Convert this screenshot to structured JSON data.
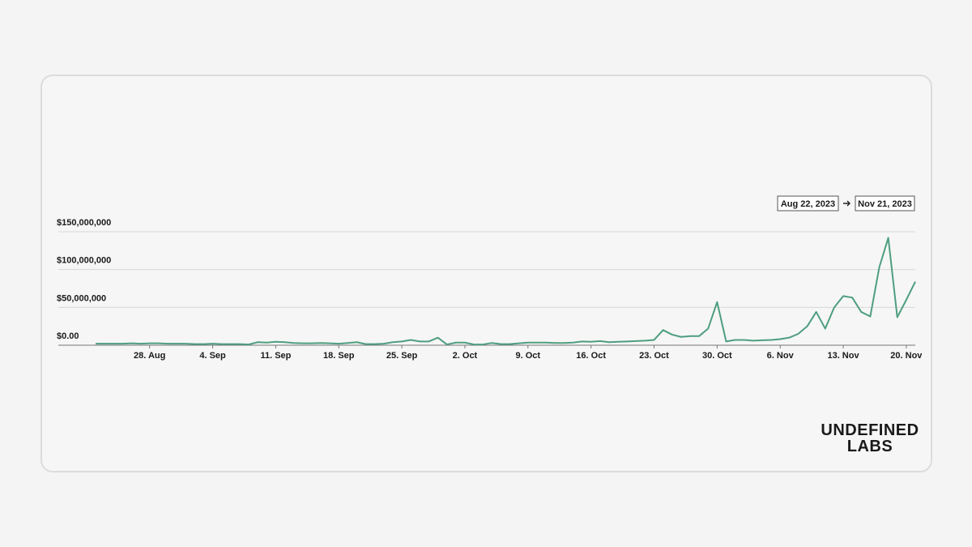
{
  "chart_data": {
    "type": "line",
    "date_range": {
      "start": "Aug 22, 2023",
      "end": "Nov 21, 2023"
    },
    "logo": [
      "UNDEFINED",
      "LABS"
    ],
    "color": "#4e9e7f",
    "x": [
      "2023-08-22",
      "2023-08-23",
      "2023-08-24",
      "2023-08-25",
      "2023-08-26",
      "2023-08-27",
      "2023-08-28",
      "2023-08-29",
      "2023-08-30",
      "2023-08-31",
      "2023-09-01",
      "2023-09-02",
      "2023-09-03",
      "2023-09-04",
      "2023-09-05",
      "2023-09-06",
      "2023-09-07",
      "2023-09-08",
      "2023-09-09",
      "2023-09-10",
      "2023-09-11",
      "2023-09-12",
      "2023-09-13",
      "2023-09-14",
      "2023-09-15",
      "2023-09-16",
      "2023-09-17",
      "2023-09-18",
      "2023-09-19",
      "2023-09-20",
      "2023-09-21",
      "2023-09-22",
      "2023-09-23",
      "2023-09-24",
      "2023-09-25",
      "2023-09-26",
      "2023-09-27",
      "2023-09-28",
      "2023-09-29",
      "2023-09-30",
      "2023-10-01",
      "2023-10-02",
      "2023-10-03",
      "2023-10-04",
      "2023-10-05",
      "2023-10-06",
      "2023-10-07",
      "2023-10-08",
      "2023-10-09",
      "2023-10-10",
      "2023-10-11",
      "2023-10-12",
      "2023-10-13",
      "2023-10-14",
      "2023-10-15",
      "2023-10-16",
      "2023-10-17",
      "2023-10-18",
      "2023-10-19",
      "2023-10-20",
      "2023-10-21",
      "2023-10-22",
      "2023-10-23",
      "2023-10-24",
      "2023-10-25",
      "2023-10-26",
      "2023-10-27",
      "2023-10-28",
      "2023-10-29",
      "2023-10-30",
      "2023-10-31",
      "2023-11-01",
      "2023-11-02",
      "2023-11-03",
      "2023-11-04",
      "2023-11-05",
      "2023-11-06",
      "2023-11-07",
      "2023-11-08",
      "2023-11-09",
      "2023-11-10",
      "2023-11-11",
      "2023-11-12",
      "2023-11-13",
      "2023-11-14",
      "2023-11-15",
      "2023-11-16",
      "2023-11-17",
      "2023-11-18",
      "2023-11-19",
      "2023-11-20",
      "2023-11-21"
    ],
    "values": [
      2000000,
      2000000,
      2000000,
      2000000,
      2500000,
      2000000,
      2500000,
      2500000,
      2000000,
      2000000,
      2000000,
      1500000,
      1500000,
      2000000,
      1500000,
      1500000,
      1500000,
      1000000,
      4000000,
      3500000,
      4500000,
      4000000,
      3000000,
      2500000,
      2500000,
      3000000,
      2500000,
      2000000,
      3000000,
      4000000,
      1500000,
      1500000,
      2000000,
      4000000,
      5000000,
      7000000,
      5000000,
      5000000,
      10000000,
      1000000,
      3500000,
      3500000,
      1000000,
      1000000,
      3000000,
      1500000,
      1500000,
      2500000,
      3500000,
      3500000,
      3500000,
      3000000,
      3000000,
      3500000,
      5000000,
      4500000,
      5500000,
      4000000,
      4500000,
      5000000,
      5500000,
      6000000,
      7000000,
      20000000,
      14000000,
      11000000,
      12000000,
      12000000,
      22000000,
      57000000,
      5000000,
      7000000,
      7000000,
      6000000,
      6500000,
      7000000,
      8000000,
      10000000,
      15000000,
      25000000,
      44000000,
      22000000,
      50000000,
      65000000,
      63000000,
      44000000,
      38000000,
      103000000,
      142000000,
      37000000,
      60000000,
      84000000
    ],
    "xlim": [
      "2023-08-22",
      "2023-11-21"
    ],
    "xticks": [
      {
        "value": "2023-08-28",
        "label": "28. Aug"
      },
      {
        "value": "2023-09-04",
        "label": "4. Sep"
      },
      {
        "value": "2023-09-11",
        "label": "11. Sep"
      },
      {
        "value": "2023-09-18",
        "label": "18. Sep"
      },
      {
        "value": "2023-09-25",
        "label": "25. Sep"
      },
      {
        "value": "2023-10-02",
        "label": "2. Oct"
      },
      {
        "value": "2023-10-09",
        "label": "9. Oct"
      },
      {
        "value": "2023-10-16",
        "label": "16. Oct"
      },
      {
        "value": "2023-10-23",
        "label": "23. Oct"
      },
      {
        "value": "2023-10-30",
        "label": "30. Oct"
      },
      {
        "value": "2023-11-06",
        "label": "6. Nov"
      },
      {
        "value": "2023-11-13",
        "label": "13. Nov"
      },
      {
        "value": "2023-11-20",
        "label": "20. Nov"
      }
    ],
    "ylim": [
      0,
      150000000
    ],
    "yticks": [
      {
        "value": 0,
        "label": "$0.00"
      },
      {
        "value": 50000000,
        "label": "$50,000,000"
      },
      {
        "value": 100000000,
        "label": "$100,000,000"
      },
      {
        "value": 150000000,
        "label": "$150,000,000"
      }
    ],
    "grid": true
  }
}
